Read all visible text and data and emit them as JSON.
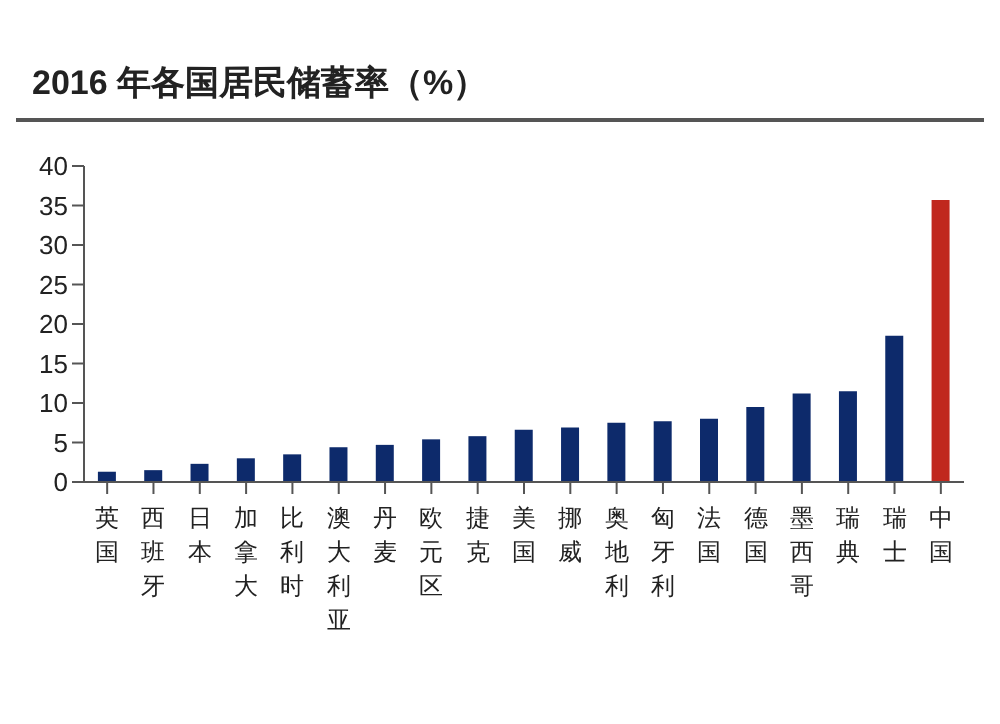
{
  "chart_data": {
    "type": "bar",
    "title": "2016 年各国居民储蓄率（%）",
    "categories": [
      "英国",
      "西班牙",
      "日本",
      "加拿大",
      "比利时",
      "澳大利亚",
      "丹麦",
      "欧元区",
      "捷克",
      "美国",
      "挪威",
      "奥地利",
      "匈牙利",
      "法国",
      "德国",
      "墨西哥",
      "瑞典",
      "瑞士",
      "中国"
    ],
    "values": [
      1.3,
      1.5,
      2.3,
      3.0,
      3.5,
      4.4,
      4.7,
      5.4,
      5.8,
      6.6,
      6.9,
      7.5,
      7.7,
      8.0,
      9.5,
      11.2,
      11.5,
      18.5,
      35.7
    ],
    "colors": [
      "#0d2a6b",
      "#0d2a6b",
      "#0d2a6b",
      "#0d2a6b",
      "#0d2a6b",
      "#0d2a6b",
      "#0d2a6b",
      "#0d2a6b",
      "#0d2a6b",
      "#0d2a6b",
      "#0d2a6b",
      "#0d2a6b",
      "#0d2a6b",
      "#0d2a6b",
      "#0d2a6b",
      "#0d2a6b",
      "#0d2a6b",
      "#0d2a6b",
      "#c0281e"
    ],
    "ylim": [
      0,
      40
    ],
    "yticks": [
      0,
      5,
      10,
      15,
      20,
      25,
      30,
      35,
      40
    ],
    "grid": false
  }
}
